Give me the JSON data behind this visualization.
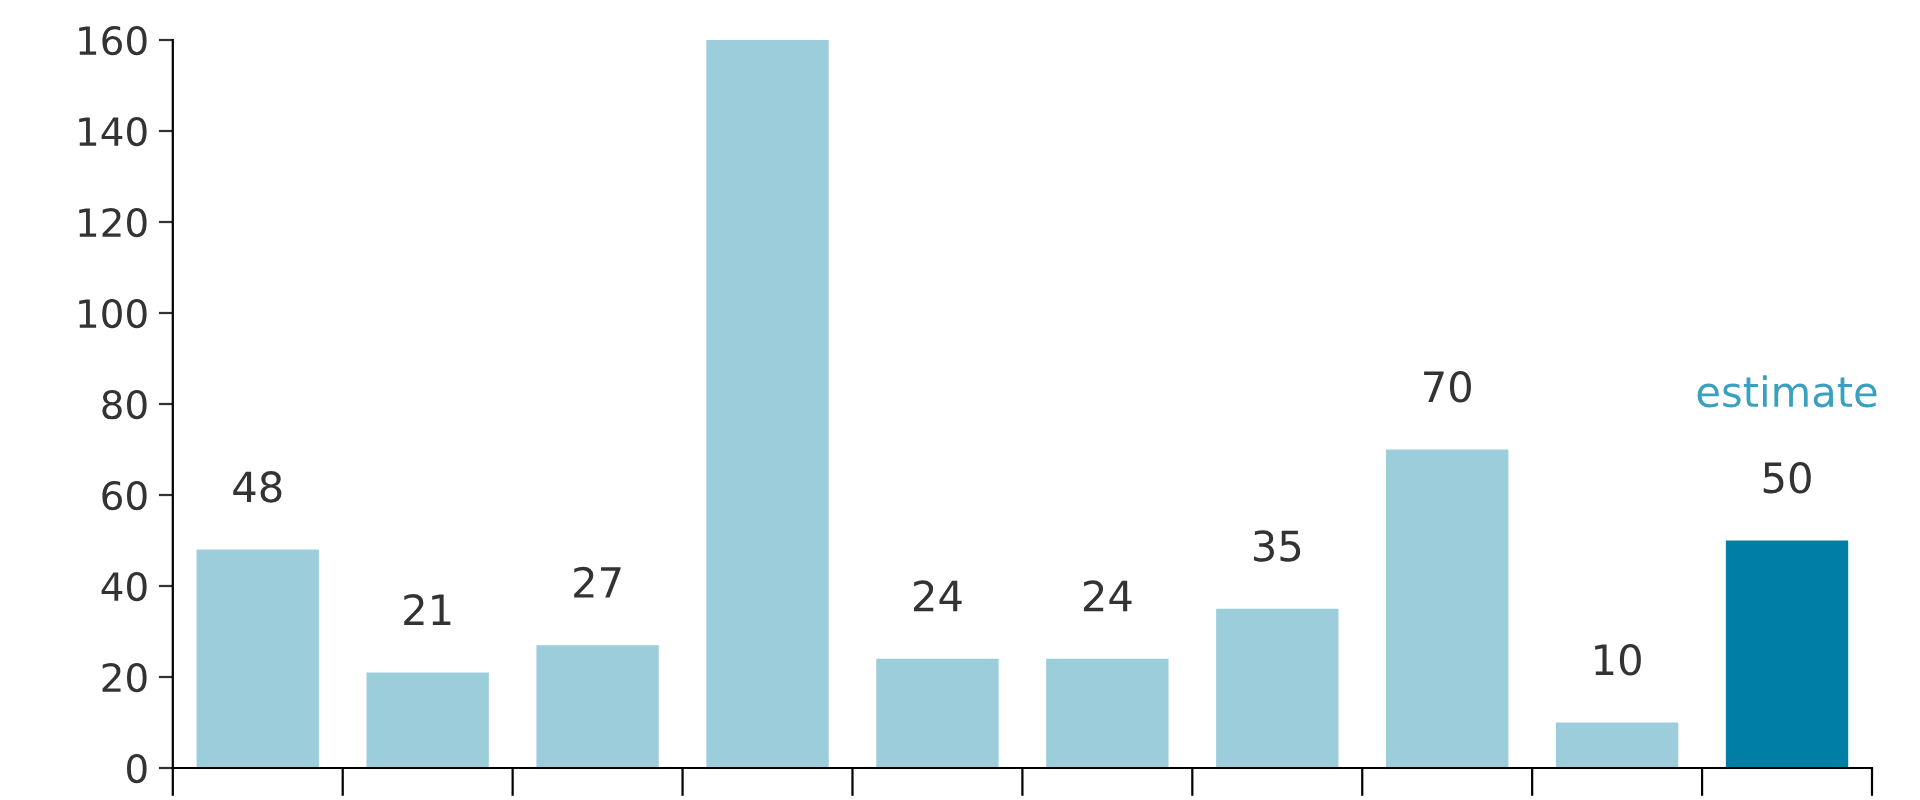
{
  "chart_data": {
    "type": "bar",
    "categories": [
      null,
      null,
      null,
      null,
      null,
      null,
      null,
      null,
      null,
      null
    ],
    "values": [
      48,
      21,
      27,
      160,
      24,
      24,
      35,
      70,
      10,
      50
    ],
    "colors": [
      "#9ccddb",
      "#9ccddb",
      "#9ccddb",
      "#9ccddb",
      "#9ccddb",
      "#9ccddb",
      "#9ccddb",
      "#9ccddb",
      "#9ccddb",
      "#007ea3"
    ],
    "value_labels": [
      "48",
      "21",
      "27",
      null,
      "24",
      "24",
      "35",
      "70",
      "10",
      "50"
    ],
    "annotations": [
      "estimate"
    ],
    "ylim": [
      0,
      160
    ],
    "yticks": [
      0,
      20,
      40,
      60,
      80,
      100,
      120,
      140,
      160
    ],
    "grid": false,
    "legend": false
  }
}
